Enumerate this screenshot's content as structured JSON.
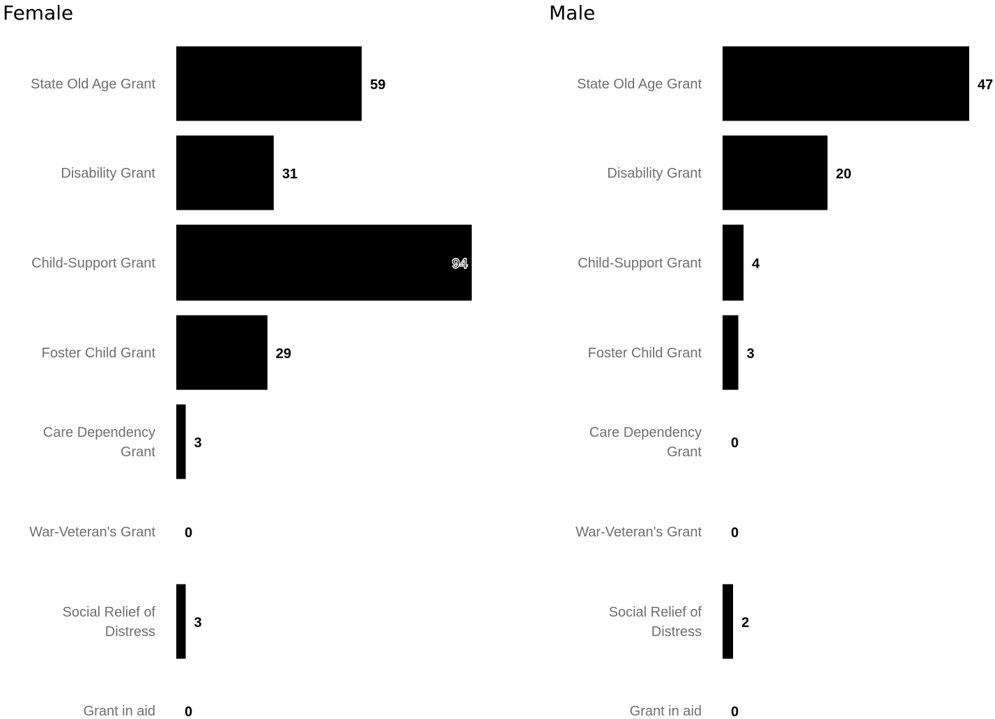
{
  "chart_data": [
    {
      "type": "bar",
      "orientation": "horizontal",
      "title": "Female",
      "categories": [
        "State Old Age Grant",
        "Disability Grant",
        "Child-Support Grant",
        "Foster Child Grant",
        "Care Dependency Grant",
        "War-Veteran's Grant",
        "Social Relief of Distress",
        "Grant in aid"
      ],
      "category_lines": [
        [
          "State Old Age Grant"
        ],
        [
          "Disability Grant"
        ],
        [
          "Child-Support Grant"
        ],
        [
          "Foster Child Grant"
        ],
        [
          "Care Dependency",
          "Grant"
        ],
        [
          "War-Veteran's Grant"
        ],
        [
          "Social Relief of",
          "Distress"
        ],
        [
          "Grant in aid"
        ]
      ],
      "values": [
        59,
        31,
        94,
        29,
        3,
        0,
        3,
        0
      ],
      "xlim": [
        0,
        94
      ],
      "grid": false,
      "bar_color": "#000000"
    },
    {
      "type": "bar",
      "orientation": "horizontal",
      "title": "Male",
      "categories": [
        "State Old Age Grant",
        "Disability Grant",
        "Child-Support Grant",
        "Foster Child Grant",
        "Care Dependency Grant",
        "War-Veteran's Grant",
        "Social Relief of Distress",
        "Grant in aid"
      ],
      "category_lines": [
        [
          "State Old Age Grant"
        ],
        [
          "Disability Grant"
        ],
        [
          "Child-Support Grant"
        ],
        [
          "Foster Child Grant"
        ],
        [
          "Care Dependency",
          "Grant"
        ],
        [
          "War-Veteran's Grant"
        ],
        [
          "Social Relief of",
          "Distress"
        ],
        [
          "Grant in aid"
        ]
      ],
      "values": [
        47,
        20,
        4,
        3,
        0,
        0,
        2,
        0
      ],
      "xlim": [
        0,
        47
      ],
      "grid": false,
      "bar_color": "#000000"
    }
  ]
}
